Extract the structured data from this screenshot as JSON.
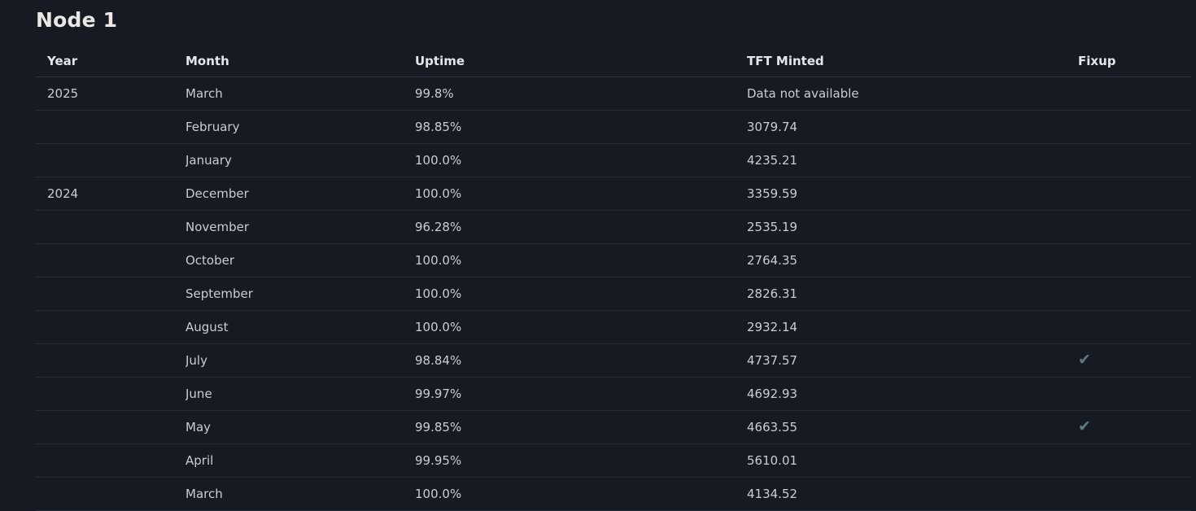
{
  "page": {
    "title": "Node 1"
  },
  "table": {
    "columns": [
      "Year",
      "Month",
      "Uptime",
      "TFT Minted",
      "Fixup"
    ],
    "fixup_icon": "✔",
    "rows": [
      {
        "year": "2025",
        "month": "March",
        "uptime": "99.8%",
        "tft_minted": "Data not available",
        "fixup": false
      },
      {
        "year": "",
        "month": "February",
        "uptime": "98.85%",
        "tft_minted": "3079.74",
        "fixup": false
      },
      {
        "year": "",
        "month": "January",
        "uptime": "100.0%",
        "tft_minted": "4235.21",
        "fixup": false
      },
      {
        "year": "2024",
        "month": "December",
        "uptime": "100.0%",
        "tft_minted": "3359.59",
        "fixup": false
      },
      {
        "year": "",
        "month": "November",
        "uptime": "96.28%",
        "tft_minted": "2535.19",
        "fixup": false
      },
      {
        "year": "",
        "month": "October",
        "uptime": "100.0%",
        "tft_minted": "2764.35",
        "fixup": false
      },
      {
        "year": "",
        "month": "September",
        "uptime": "100.0%",
        "tft_minted": "2826.31",
        "fixup": false
      },
      {
        "year": "",
        "month": "August",
        "uptime": "100.0%",
        "tft_minted": "2932.14",
        "fixup": false
      },
      {
        "year": "",
        "month": "July",
        "uptime": "98.84%",
        "tft_minted": "4737.57",
        "fixup": true
      },
      {
        "year": "",
        "month": "June",
        "uptime": "99.97%",
        "tft_minted": "4692.93",
        "fixup": false
      },
      {
        "year": "",
        "month": "May",
        "uptime": "99.85%",
        "tft_minted": "4663.55",
        "fixup": true
      },
      {
        "year": "",
        "month": "April",
        "uptime": "99.95%",
        "tft_minted": "5610.01",
        "fixup": false
      },
      {
        "year": "",
        "month": "March",
        "uptime": "100.0%",
        "tft_minted": "4134.52",
        "fixup": false
      }
    ]
  },
  "colors": {
    "background": "#151a23",
    "row_divider": "#252c39",
    "header_divider": "#2c3442",
    "title_text": "#eae8e4",
    "header_text": "#e3e7ec",
    "cell_text": "#c9ced6",
    "fixup_check": "#5e7787"
  }
}
